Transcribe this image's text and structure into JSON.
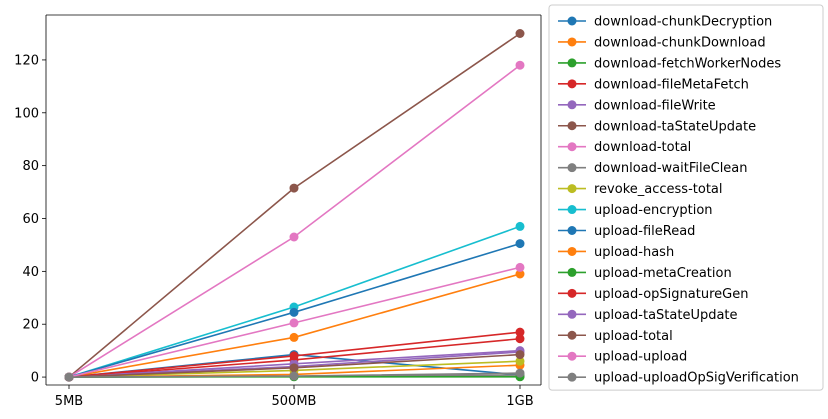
{
  "chart_data": {
    "type": "line",
    "title": "",
    "xlabel": "",
    "ylabel": "",
    "categories": [
      "5MB",
      "500MB",
      "1GB"
    ],
    "ylim": [
      -3,
      137
    ],
    "yticks": [
      0,
      20,
      40,
      60,
      80,
      100,
      120
    ],
    "grid": false,
    "legend_position": "outside-right",
    "series": [
      {
        "name": "download-chunkDecryption",
        "color": "#1f77b4",
        "values": [
          0.0,
          8.5,
          0.8
        ]
      },
      {
        "name": "download-chunkDownload",
        "color": "#ff7f0e",
        "values": [
          0.0,
          1.0,
          4.5
        ]
      },
      {
        "name": "download-fetchWorkerNodes",
        "color": "#2ca02c",
        "values": [
          0.0,
          0.2,
          0.2
        ]
      },
      {
        "name": "download-fileMetaFetch",
        "color": "#d62728",
        "values": [
          0.0,
          6.5,
          14.5
        ]
      },
      {
        "name": "download-fileWrite",
        "color": "#9467bd",
        "values": [
          0.0,
          5.0,
          10.0
        ]
      },
      {
        "name": "download-taStateUpdate",
        "color": "#8c564b",
        "values": [
          0.0,
          71.5,
          130.0
        ]
      },
      {
        "name": "download-total",
        "color": "#e377c2",
        "values": [
          0.0,
          53.0,
          118.0
        ]
      },
      {
        "name": "download-waitFileClean",
        "color": "#7f7f7f",
        "values": [
          0.0,
          0.3,
          0.8
        ]
      },
      {
        "name": "revoke_access-total",
        "color": "#bcbd22",
        "values": [
          0.0,
          2.5,
          6.0
        ]
      },
      {
        "name": "upload-encryption",
        "color": "#17becf",
        "values": [
          0.0,
          26.5,
          57.0
        ]
      },
      {
        "name": "upload-fileRead",
        "color": "#1f77b4",
        "values": [
          0.0,
          24.5,
          50.5
        ]
      },
      {
        "name": "upload-hash",
        "color": "#ff7f0e",
        "values": [
          0.0,
          15.0,
          39.0
        ]
      },
      {
        "name": "upload-metaCreation",
        "color": "#2ca02c",
        "values": [
          0.0,
          0.1,
          0.1
        ]
      },
      {
        "name": "upload-opSignatureGen",
        "color": "#d62728",
        "values": [
          0.0,
          8.0,
          17.0
        ]
      },
      {
        "name": "upload-taStateUpdate",
        "color": "#9467bd",
        "values": [
          0.0,
          4.0,
          9.5
        ]
      },
      {
        "name": "upload-total",
        "color": "#8c564b",
        "values": [
          0.0,
          3.5,
          8.5
        ]
      },
      {
        "name": "upload-upload",
        "color": "#e377c2",
        "values": [
          0.0,
          20.5,
          41.5
        ]
      },
      {
        "name": "upload-uploadOpSigVerification",
        "color": "#7f7f7f",
        "values": [
          0.0,
          0.4,
          1.5
        ]
      }
    ]
  }
}
